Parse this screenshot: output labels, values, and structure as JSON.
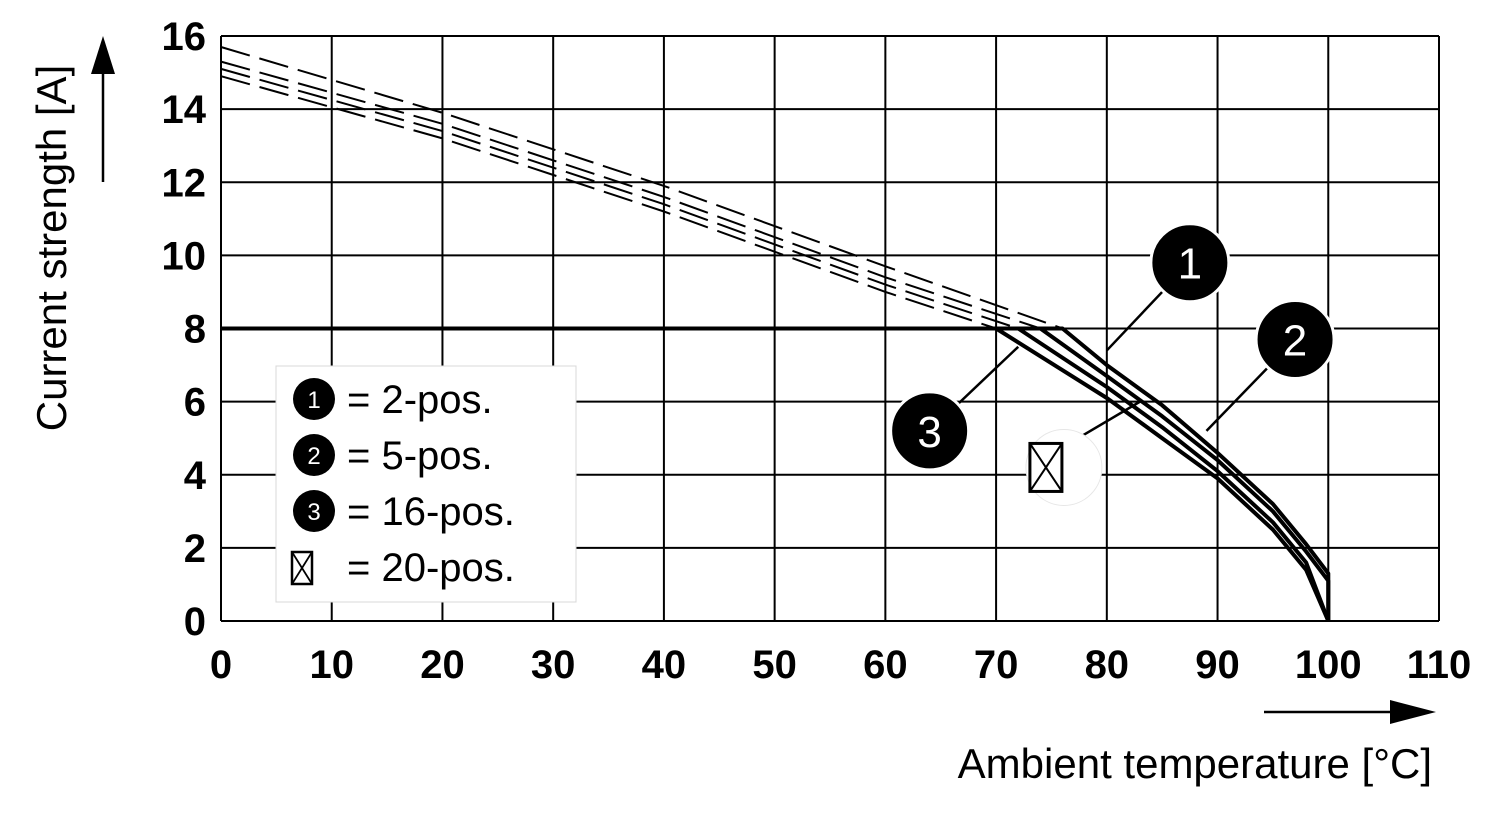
{
  "chart_data": {
    "type": "line",
    "xlabel": "Ambient temperature [°C]",
    "ylabel": "Current strength [A]",
    "xlim": [
      0,
      110
    ],
    "ylim": [
      0,
      16
    ],
    "x_ticks": [
      0,
      10,
      20,
      30,
      40,
      50,
      60,
      70,
      80,
      90,
      100,
      110
    ],
    "y_ticks": [
      0,
      2,
      4,
      6,
      8,
      10,
      12,
      14,
      16
    ],
    "grid": true,
    "legend": {
      "placement": "left",
      "entries": [
        {
          "marker": "1",
          "label": "= 2-pos."
        },
        {
          "marker": "2",
          "label": "= 5-pos."
        },
        {
          "marker": "3",
          "label": "= 16-pos."
        },
        {
          "marker": "box-x",
          "label": "= 20-pos."
        }
      ]
    },
    "current_limit": 8,
    "series": [
      {
        "marker": "1",
        "style": "solid",
        "x": [
          0,
          76,
          80,
          85,
          90,
          95,
          98,
          100,
          100
        ],
        "y": [
          8,
          8,
          7.0,
          5.9,
          4.6,
          3.2,
          2.1,
          1.3,
          0
        ]
      },
      {
        "marker": "2",
        "style": "solid",
        "x": [
          0,
          74,
          80,
          85,
          90,
          95,
          98,
          100,
          100
        ],
        "y": [
          8,
          8,
          6.7,
          5.6,
          4.4,
          3.0,
          1.9,
          1.1,
          0
        ]
      },
      {
        "marker": "3",
        "style": "solid",
        "x": [
          0,
          72,
          80,
          85,
          90,
          95,
          98,
          100
        ],
        "y": [
          8,
          8,
          6.4,
          5.3,
          4.1,
          2.7,
          1.6,
          0
        ]
      },
      {
        "marker": "box-x",
        "style": "solid",
        "x": [
          0,
          70,
          80,
          85,
          90,
          95,
          98,
          100
        ],
        "y": [
          8,
          8,
          6.1,
          5.0,
          3.9,
          2.5,
          1.4,
          0
        ]
      }
    ],
    "derating_curves": [
      {
        "style": "dashed",
        "x": [
          0,
          20,
          40,
          60,
          76
        ],
        "y": [
          15.7,
          13.9,
          11.9,
          9.7,
          8.0
        ]
      },
      {
        "style": "dashed",
        "x": [
          0,
          20,
          40,
          60,
          74
        ],
        "y": [
          15.3,
          13.6,
          11.6,
          9.4,
          8.0
        ]
      },
      {
        "style": "dashed",
        "x": [
          0,
          20,
          40,
          60,
          72
        ],
        "y": [
          15.1,
          13.4,
          11.4,
          9.2,
          8.0
        ]
      },
      {
        "style": "dashed",
        "x": [
          0,
          20,
          40,
          60,
          70
        ],
        "y": [
          14.9,
          13.2,
          11.2,
          9.0,
          8.0
        ]
      }
    ],
    "callouts": [
      {
        "marker": "1",
        "point": [
          80,
          7.4
        ],
        "label_at": [
          87.5,
          9.8
        ]
      },
      {
        "marker": "2",
        "point": [
          89,
          5.2
        ],
        "label_at": [
          97,
          7.7
        ]
      },
      {
        "marker": "3",
        "point": [
          72,
          7.5
        ],
        "label_at": [
          64,
          5.2
        ]
      },
      {
        "marker": "box-x",
        "point": [
          83,
          6.0
        ],
        "label_at": [
          74.5,
          4.2
        ]
      }
    ]
  }
}
